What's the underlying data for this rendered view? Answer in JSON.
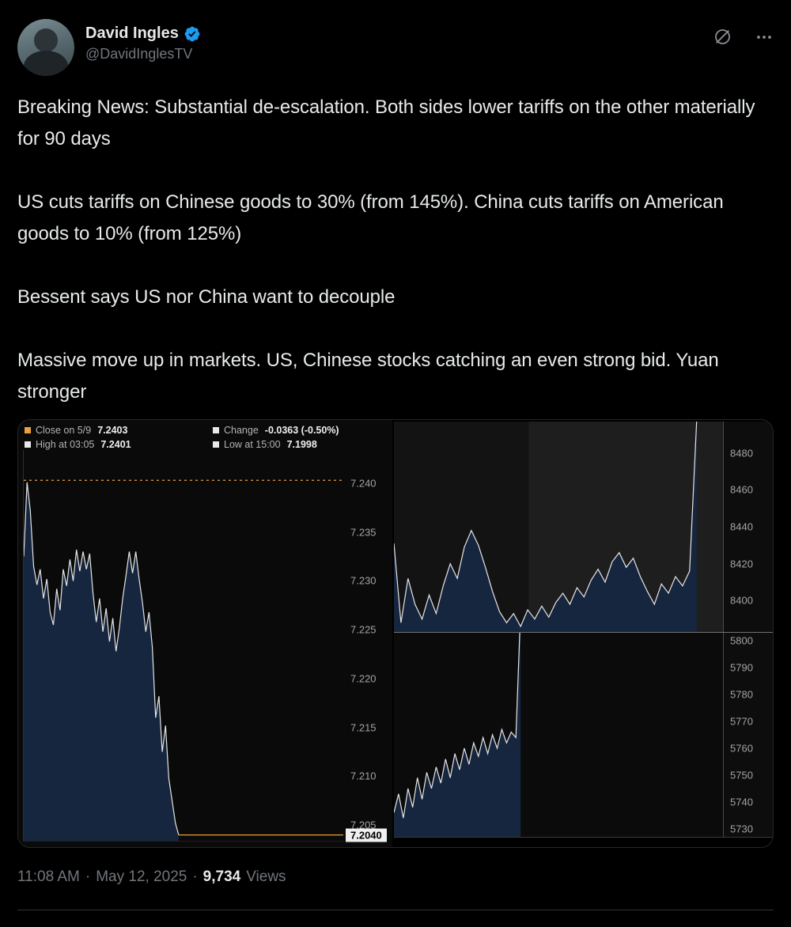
{
  "colors": {
    "verified_blue": "#1d9bf0",
    "accent_orange": "#eba03c",
    "chart_fill": "#16263f",
    "chart_line": "#e6e6e6"
  },
  "header": {
    "name": "David Ingles",
    "handle": "@DavidInglesTV"
  },
  "tweet": {
    "paragraphs": [
      "Breaking News: Substantial de-escalation. Both sides lower tariffs on the other materially for 90 days",
      "US cuts tariffs on Chinese goods to 30% (from 145%). China cuts tariffs on American goods to 10% (from 125%)",
      "Bessent says US nor China want to decouple",
      "Massive move up in markets. US, Chinese stocks catching an even strong bid. Yuan stronger"
    ]
  },
  "footer": {
    "time": "11:08 AM",
    "sep": "·",
    "date": "May 12, 2025",
    "views_count": "9,734",
    "views_label": "Views"
  },
  "chart_data": [
    {
      "type": "area",
      "legend": [
        {
          "swatch": "#eba03c",
          "label": "Close on 5/9",
          "value": "7.2403"
        },
        {
          "swatch": "#e8e8e8",
          "label": "Change",
          "value": "-0.0363 (-0.50%)"
        },
        {
          "swatch": "#e8e8e8",
          "label": "High at 03:05",
          "value": "7.2401"
        },
        {
          "swatch": "#e8e8e8",
          "label": "Low at 15:00",
          "value": "7.1998"
        }
      ],
      "ylim": [
        7.2034,
        7.2434
      ],
      "yticks": [
        7.24,
        7.235,
        7.23,
        7.225,
        7.22,
        7.215,
        7.21,
        7.205
      ],
      "ytick_labels": [
        "7.240",
        "7.235",
        "7.230",
        "7.225",
        "7.220",
        "7.215",
        "7.210",
        "7.205"
      ],
      "last_price": "7.2040",
      "last_value": 7.204,
      "x_extent": [
        0,
        0.485
      ],
      "fill": "#16263f",
      "stroke": "#e6e6e6",
      "values": [
        7.2325,
        7.2401,
        7.2372,
        7.2315,
        7.2296,
        7.2312,
        7.2282,
        7.2302,
        7.2268,
        7.2255,
        7.2292,
        7.227,
        7.2312,
        7.2295,
        7.2322,
        7.23,
        7.2332,
        7.231,
        7.233,
        7.2312,
        7.2328,
        7.2288,
        7.2258,
        7.2282,
        7.2248,
        7.2272,
        7.2238,
        7.2262,
        7.2228,
        7.2252,
        7.2282,
        7.2305,
        7.233,
        7.2308,
        7.233,
        7.2302,
        7.2278,
        7.2248,
        7.2268,
        7.2232,
        7.216,
        7.2182,
        7.2125,
        7.2152,
        7.2098,
        7.2075,
        7.2052,
        7.204
      ],
      "hlines": [
        {
          "value": 7.2403,
          "color": "#eba03c",
          "dash": true,
          "x0": 0,
          "x1": 1
        },
        {
          "value": 7.204,
          "color": "#eba03c",
          "dash": false,
          "x0": 0.485,
          "x1": 1
        }
      ]
    },
    {
      "type": "area",
      "ylim": [
        8383,
        8497
      ],
      "yticks": [
        8480,
        8460,
        8440,
        8420,
        8400
      ],
      "ytick_labels": [
        "8480",
        "8460",
        "8440",
        "8420",
        "8400"
      ],
      "x_extent": [
        0,
        0.92
      ],
      "fill": "#16263f",
      "stroke": "#e6e6e6",
      "band": {
        "x0": 0.41,
        "x1": 1,
        "color": "#1e1e1e"
      },
      "values": [
        8431,
        8388,
        8412,
        8398,
        8390,
        8403,
        8393,
        8408,
        8420,
        8412,
        8429,
        8438,
        8430,
        8418,
        8405,
        8394,
        8388,
        8393,
        8386,
        8395,
        8390,
        8397,
        8391,
        8399,
        8404,
        8398,
        8407,
        8402,
        8411,
        8417,
        8410,
        8421,
        8426,
        8418,
        8423,
        8413,
        8405,
        8398,
        8409,
        8404,
        8413,
        8408,
        8416,
        8497
      ]
    },
    {
      "type": "area",
      "ylim": [
        5727,
        5803
      ],
      "yticks": [
        5800,
        5790,
        5780,
        5770,
        5760,
        5750,
        5740,
        5730
      ],
      "ytick_labels": [
        "5800",
        "5790",
        "5780",
        "5770",
        "5760",
        "5750",
        "5740",
        "5730"
      ],
      "x_extent": [
        0,
        0.385
      ],
      "fill": "#16263f",
      "stroke": "#e6e6e6",
      "values": [
        5736,
        5743,
        5734,
        5745,
        5738,
        5749,
        5741,
        5751,
        5745,
        5753,
        5747,
        5756,
        5749,
        5758,
        5752,
        5760,
        5754,
        5762,
        5757,
        5764,
        5758,
        5765,
        5760,
        5767,
        5762,
        5766,
        5764,
        5812
      ]
    }
  ]
}
